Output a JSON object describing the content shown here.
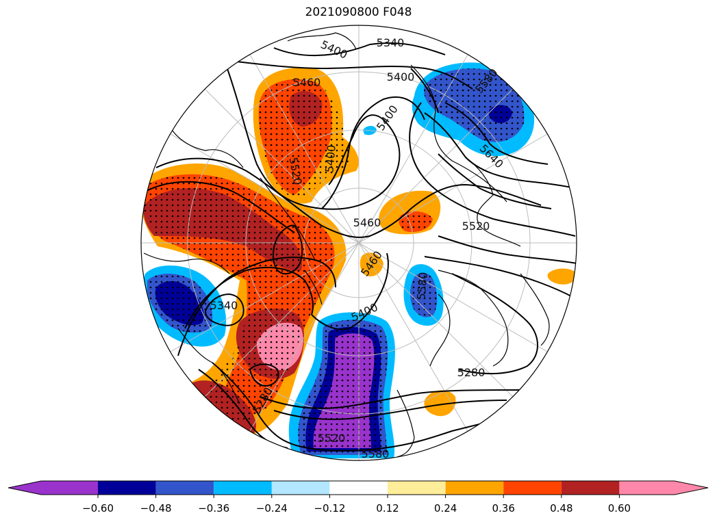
{
  "title": "2021090800 F048",
  "contour_labels": [
    "5340",
    "5400",
    "5400",
    "5580",
    "5400",
    "5460",
    "5520",
    "5400",
    "5640",
    "5520",
    "5460",
    "5460",
    "5400",
    "5340",
    "5580",
    "5280",
    "5520",
    "5580",
    "5280"
  ],
  "colorbar": {
    "ticks": [
      "−0.60",
      "−0.48",
      "−0.36",
      "−0.24",
      "−0.12",
      "0.12",
      "0.24",
      "0.36",
      "0.48",
      "0.60"
    ],
    "colors": [
      "#9933cc",
      "#000099",
      "#3355cc",
      "#00bbff",
      "#b3e6ff",
      "#ffffff",
      "#ffee99",
      "#ffa500",
      "#ff4400",
      "#b22222",
      "#ff88aa"
    ]
  },
  "palette": {
    "orange": "#ffa500",
    "red": "#ff4400",
    "darkred": "#b22222",
    "pink": "#ff88aa",
    "lightyellow": "#ffee99",
    "purple": "#9933cc",
    "navy": "#000099",
    "blue": "#3355cc",
    "cyan": "#00bbff",
    "contour": "#000000",
    "grid": "#bbbbbb"
  }
}
